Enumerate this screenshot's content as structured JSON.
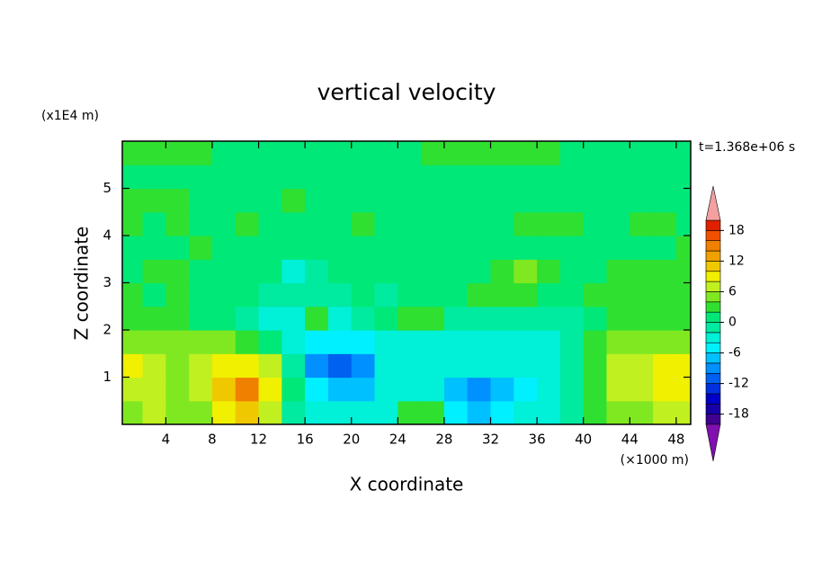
{
  "chart_data": {
    "type": "contour",
    "title": "vertical velocity",
    "xlabel": "X coordinate",
    "ylabel": "Z coordinate",
    "xunit": "(×1000 m)",
    "yunit": "(x1E4 m)",
    "annotation": "t=1.368e+06 s",
    "xlim": [
      0.25,
      49.25
    ],
    "ylim": [
      0,
      6
    ],
    "xticks": [
      4,
      8,
      12,
      16,
      20,
      24,
      28,
      32,
      36,
      40,
      44,
      48
    ],
    "yticks": [
      1,
      2,
      3,
      4,
      5
    ],
    "x": [
      1,
      3,
      5,
      7,
      9,
      11,
      13,
      15,
      17,
      19,
      21,
      23,
      25,
      27,
      29,
      31,
      33,
      35,
      37,
      39,
      41,
      43,
      45,
      47,
      49
    ],
    "y": [
      0.25,
      0.75,
      1.25,
      1.75,
      2.25,
      2.75,
      3.25,
      3.75,
      4.25,
      4.75,
      5.25,
      5.75
    ],
    "z": [
      [
        5,
        6,
        5,
        5,
        9,
        11,
        7,
        -1,
        -3,
        -3,
        -3,
        -3,
        3,
        3,
        -5,
        -7,
        -5,
        -3,
        -3,
        -1,
        3,
        5,
        5,
        6,
        6
      ],
      [
        7,
        6,
        5,
        6,
        10,
        14,
        8,
        0,
        -5,
        -8,
        -7,
        -3,
        -3,
        -3,
        -7,
        -10,
        -7,
        -5,
        -3,
        -1,
        3,
        6,
        7,
        8,
        9
      ],
      [
        8,
        7,
        5,
        6,
        8,
        9,
        6,
        -1,
        -10,
        -12,
        -9,
        -3,
        -3,
        -3,
        -3,
        -3,
        -3,
        -3,
        -3,
        -1,
        3,
        6,
        7,
        8,
        9
      ],
      [
        5,
        5,
        4,
        4,
        4,
        3,
        1,
        -3,
        -5,
        -5,
        -5,
        -3,
        -3,
        -3,
        -3,
        -3,
        -3,
        -3,
        -3,
        -1,
        3,
        4,
        5,
        5,
        5
      ],
      [
        3,
        3,
        3,
        1,
        1,
        -1,
        -3,
        -3,
        3,
        -3,
        -1,
        1,
        3,
        3,
        -1,
        -1,
        -1,
        -1,
        -1,
        -1,
        1,
        3,
        3,
        3,
        3
      ],
      [
        3,
        1,
        3,
        1,
        1,
        1,
        -1,
        -1,
        -1,
        -1,
        1,
        -1,
        1,
        1,
        1,
        3,
        3,
        3,
        1,
        1,
        3,
        3,
        3,
        3,
        3
      ],
      [
        1,
        3,
        3,
        1,
        1,
        1,
        1,
        -3,
        -1,
        1,
        1,
        1,
        1,
        1,
        1,
        1,
        3,
        5,
        3,
        1,
        1,
        3,
        3,
        3,
        3
      ],
      [
        1,
        1,
        1,
        3,
        1,
        1,
        1,
        1,
        1,
        1,
        1,
        1,
        1,
        1,
        1,
        1,
        1,
        1,
        1,
        1,
        1,
        1,
        1,
        1,
        3
      ],
      [
        3,
        1,
        3,
        1,
        1,
        3,
        1,
        1,
        1,
        1,
        3,
        1,
        1,
        1,
        1,
        1,
        1,
        3,
        3,
        3,
        1,
        1,
        3,
        3,
        1
      ],
      [
        3,
        3,
        3,
        1,
        1,
        1,
        1,
        3,
        1,
        1,
        1,
        1,
        1,
        1,
        1,
        1,
        1,
        1,
        1,
        1,
        1,
        1,
        1,
        1,
        1
      ],
      [
        1,
        1,
        1,
        1,
        1,
        1,
        1,
        1,
        1,
        1,
        1,
        1,
        1,
        1,
        1,
        1,
        1,
        1,
        1,
        1,
        1,
        1,
        1,
        1,
        1
      ],
      [
        3,
        3,
        3,
        3,
        1,
        1,
        1,
        1,
        1,
        1,
        1,
        1,
        1,
        3,
        3,
        3,
        3,
        3,
        3,
        1,
        1,
        1,
        1,
        1,
        1
      ]
    ],
    "levels": [
      -20,
      -18,
      -16,
      -14,
      -12,
      -10,
      -8,
      -6,
      -4,
      -2,
      0,
      2,
      4,
      6,
      8,
      10,
      12,
      14,
      16,
      18,
      20
    ],
    "colors": [
      "#400090",
      "#1800a8",
      "#0000c8",
      "#0030e0",
      "#0060f0",
      "#0090ff",
      "#00c0ff",
      "#00f0ff",
      "#00f0d8",
      "#00eaa0",
      "#00e878",
      "#30e030",
      "#80e820",
      "#c0f020",
      "#f0f000",
      "#f0c800",
      "#f0a000",
      "#f08000",
      "#f05000",
      "#e02000"
    ],
    "under_color": "#8010b0",
    "over_color": "#f4a0a0",
    "colorbar_ticks": [
      18,
      12,
      6,
      0,
      -6,
      -12,
      -18
    ]
  }
}
